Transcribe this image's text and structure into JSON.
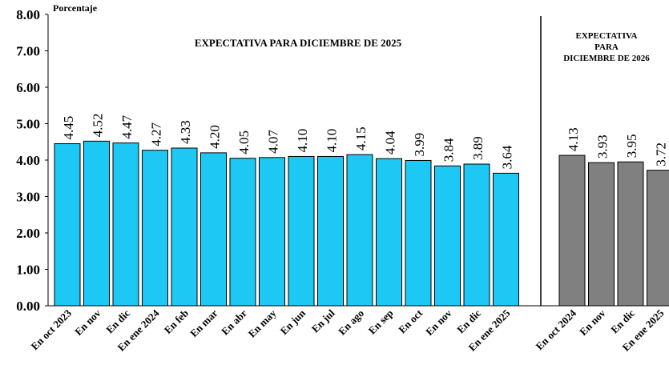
{
  "chart_data": [
    {
      "type": "bar",
      "ylabel": "Porcentaje",
      "title": "EXPECTATIVA PARA DICIEMBRE DE 2025",
      "categories": [
        "En oct 2023",
        "En nov",
        "En dic",
        "En ene 2024",
        "En feb",
        "En mar",
        "En abr",
        "En may",
        "En jun",
        "En jul",
        "En ago",
        "En sep",
        "En oct",
        "En nov",
        "En dic",
        "En ene 2025"
      ],
      "values": [
        4.45,
        4.52,
        4.47,
        4.27,
        4.33,
        4.2,
        4.05,
        4.07,
        4.1,
        4.1,
        4.15,
        4.04,
        3.99,
        3.84,
        3.89,
        3.64
      ],
      "value_labels": [
        "4.45",
        "4.52",
        "4.47",
        "4.27",
        "4.33",
        "4.20",
        "4.05",
        "4.07",
        "4.10",
        "4.10",
        "4.15",
        "4.04",
        "3.99",
        "3.84",
        "3.89",
        "3.64"
      ],
      "color": "#1ec8f4",
      "ylim": [
        0,
        8
      ],
      "yticks": [
        {
          "value": 0,
          "label": "0.00"
        },
        {
          "value": 1,
          "label": "1.00"
        },
        {
          "value": 2,
          "label": "2.00"
        },
        {
          "value": 3,
          "label": "3.00"
        },
        {
          "value": 4,
          "label": "4.00"
        },
        {
          "value": 5,
          "label": "5.00"
        },
        {
          "value": 6,
          "label": "6.00"
        },
        {
          "value": 7,
          "label": "7.00"
        },
        {
          "value": 8,
          "label": "8.00"
        }
      ]
    },
    {
      "type": "bar",
      "title": [
        "EXPECTATIVA",
        "PARA",
        "DICIEMBRE DE 2026"
      ],
      "categories": [
        "En oct 2024",
        "En nov",
        "En dic",
        "En ene 2025"
      ],
      "values": [
        4.13,
        3.93,
        3.95,
        3.72
      ],
      "value_labels": [
        "4.13",
        "3.93",
        "3.95",
        "3.72"
      ],
      "color": "#808080",
      "ylim": [
        0,
        8
      ]
    }
  ]
}
